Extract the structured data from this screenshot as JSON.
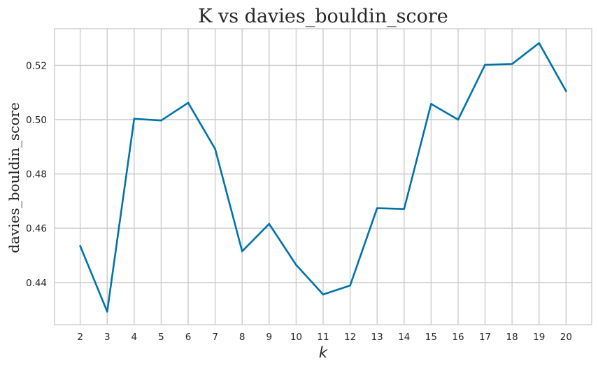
{
  "chart_data": {
    "type": "line",
    "title": "K vs davies_bouldin_score",
    "xlabel": "k",
    "ylabel": "davies_bouldin_score",
    "x": [
      2,
      3,
      4,
      5,
      6,
      7,
      8,
      9,
      10,
      11,
      12,
      13,
      14,
      15,
      16,
      17,
      18,
      19,
      20
    ],
    "x_tick_labels": [
      "2",
      "3",
      "4",
      "5",
      "6",
      "7",
      "8",
      "9",
      "10",
      "11",
      "12",
      "13",
      "14",
      "15",
      "16",
      "17",
      "18",
      "19",
      "20"
    ],
    "y_tick_values": [
      0.44,
      0.46,
      0.48,
      0.5,
      0.52
    ],
    "y_tick_labels": [
      "0.44",
      "0.46",
      "0.48",
      "0.50",
      "0.52"
    ],
    "xlim": [
      1.05,
      20.95
    ],
    "ylim": [
      0.4245,
      0.5335
    ],
    "grid": true,
    "series": [
      {
        "color": "#0173a8",
        "values": [
          0.4535,
          0.4293,
          0.5003,
          0.4997,
          0.5062,
          0.4892,
          0.4515,
          0.4616,
          0.4465,
          0.4356,
          0.4389,
          0.4674,
          0.4671,
          0.5058,
          0.5,
          0.5202,
          0.5205,
          0.5282,
          0.5105
        ]
      }
    ]
  }
}
